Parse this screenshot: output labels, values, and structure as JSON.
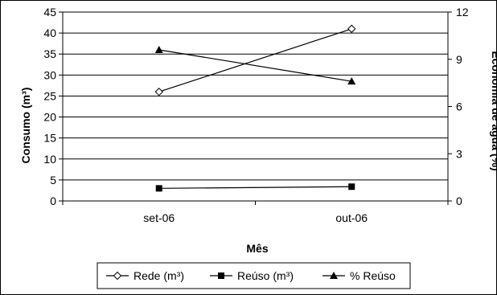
{
  "chart_data": {
    "type": "line",
    "categories": [
      "set-06",
      "out-06"
    ],
    "xlabel": "Mês",
    "ylabel": "Consumo (m³)",
    "y2label": "Economia de água (%)",
    "ylim": [
      0,
      45
    ],
    "yticks": [
      0,
      5,
      10,
      15,
      20,
      25,
      30,
      35,
      40,
      45
    ],
    "y2lim": [
      0,
      12
    ],
    "y2ticks": [
      0,
      3,
      6,
      9,
      12
    ],
    "grid": true,
    "legend_position": "bottom",
    "series": [
      {
        "name": "Rede (m³)",
        "axis": "left",
        "values": [
          26,
          41
        ],
        "marker": "diamond-open"
      },
      {
        "name": "Reúso (m³)",
        "axis": "left",
        "values": [
          3,
          3.4
        ],
        "marker": "square"
      },
      {
        "name": "% Reúso",
        "axis": "right",
        "values": [
          9.6,
          7.6
        ],
        "marker": "triangle"
      }
    ]
  }
}
